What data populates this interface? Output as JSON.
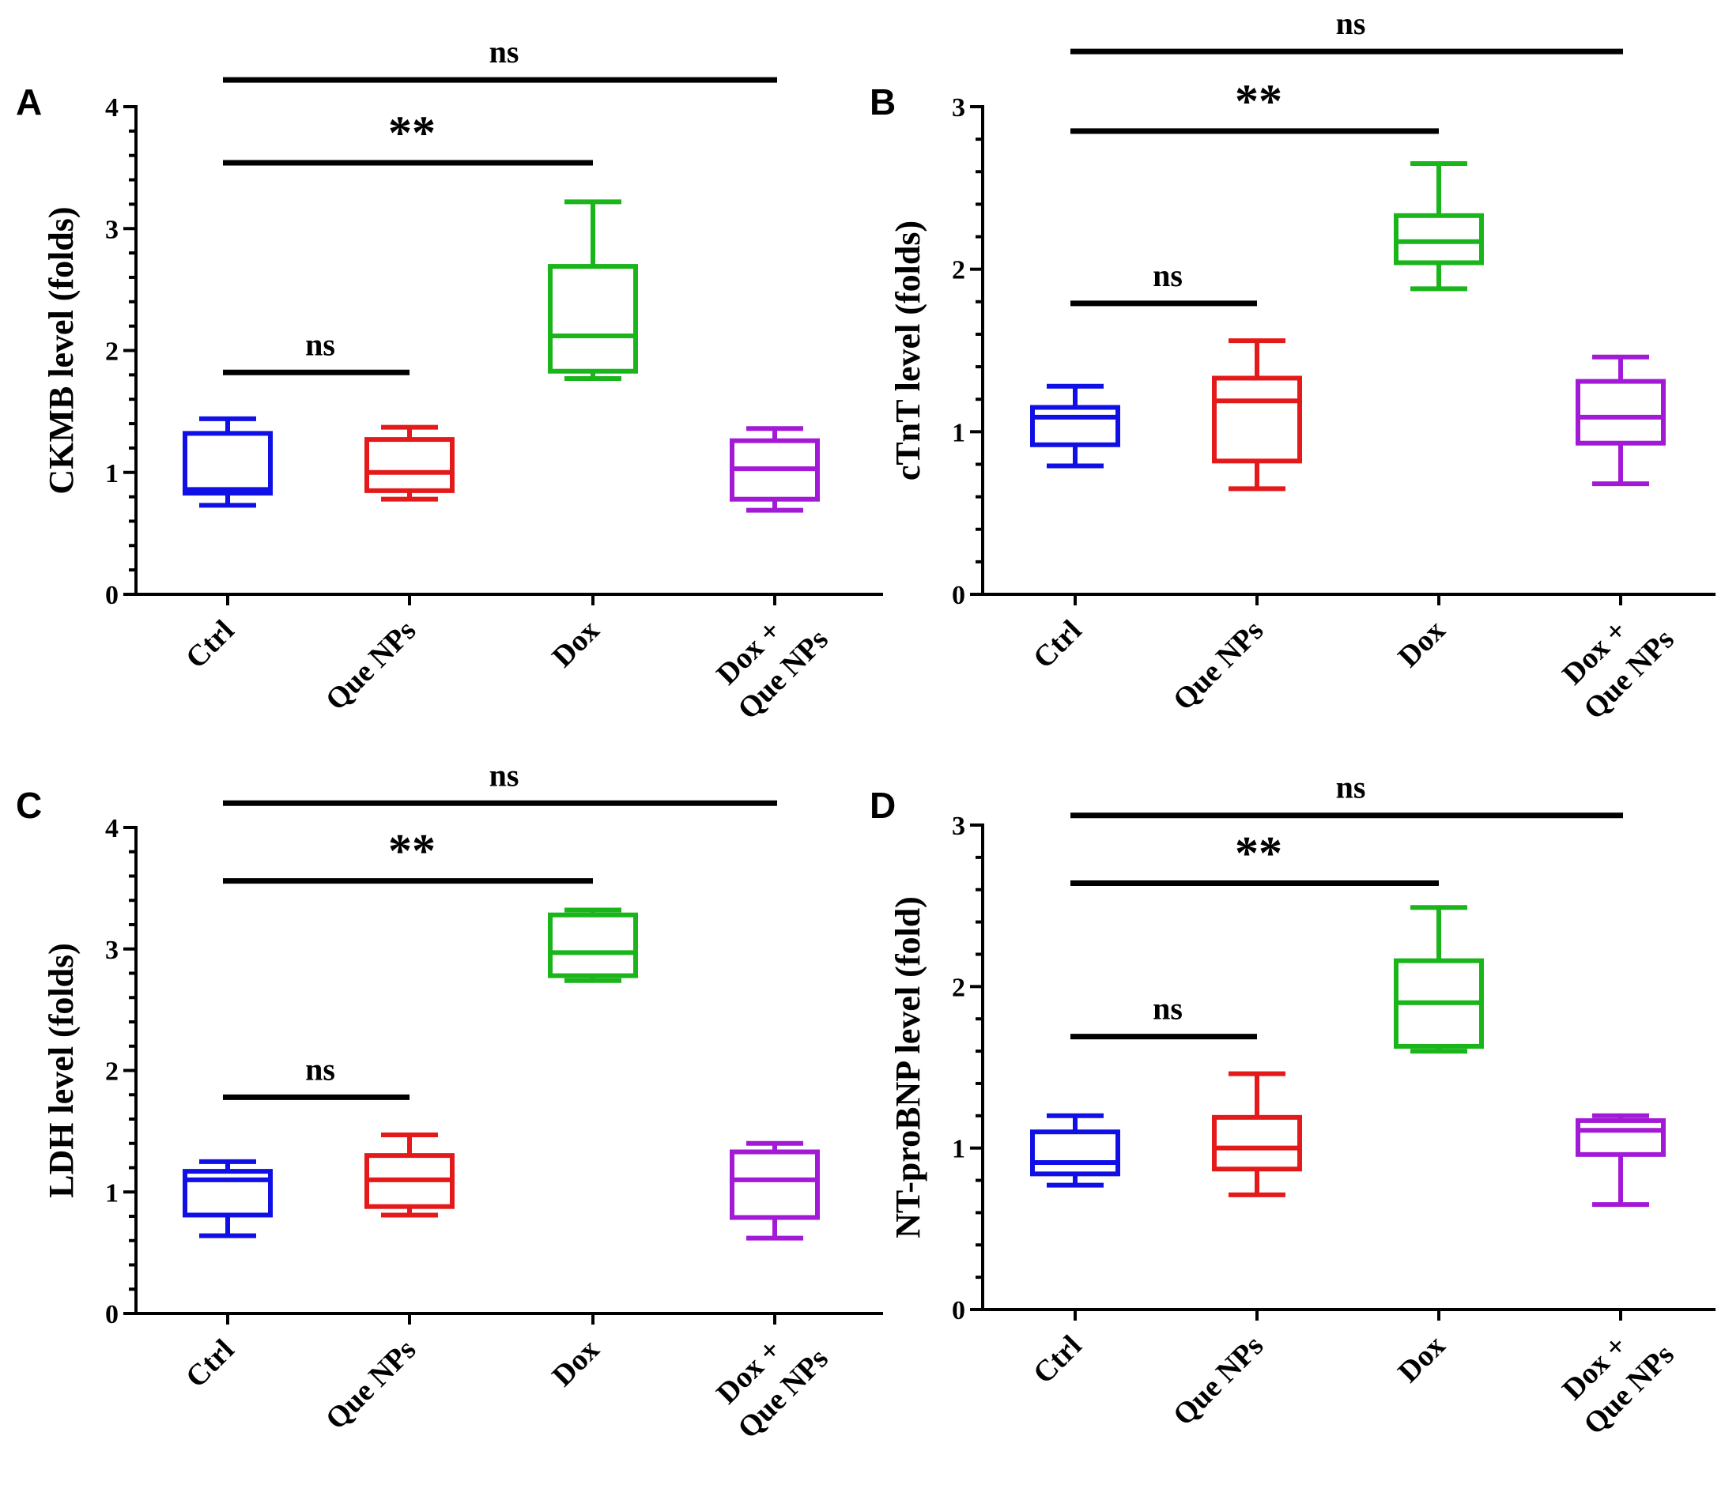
{
  "colors": {
    "ctrl": "#1010e6",
    "que_nps": "#e41a1a",
    "dox": "#1ab51a",
    "dox_que_nps": "#a31ad6",
    "axis": "#000000"
  },
  "category_labels": [
    [
      "Ctrl"
    ],
    [
      "Que NPs"
    ],
    [
      "Dox"
    ],
    [
      "Dox +",
      "Que NPs"
    ]
  ],
  "chart_data": [
    {
      "panel": "A",
      "type": "box",
      "ylabel": "CKMB level (folds)",
      "ylim": [
        0,
        4
      ],
      "yticks": [
        "0",
        "1",
        "2",
        "3",
        "4"
      ],
      "categories": [
        "Ctrl",
        "Que NPs",
        "Dox",
        "Dox + Que NPs"
      ],
      "boxes": [
        {
          "min": 0.73,
          "q1": 0.83,
          "median": 0.86,
          "q3": 1.32,
          "max": 1.44
        },
        {
          "min": 0.78,
          "q1": 0.85,
          "median": 1.0,
          "q3": 1.27,
          "max": 1.37
        },
        {
          "min": 1.77,
          "q1": 1.83,
          "median": 2.12,
          "q3": 2.69,
          "max": 3.22
        },
        {
          "min": 0.69,
          "q1": 0.78,
          "median": 1.03,
          "q3": 1.26,
          "max": 1.36
        }
      ],
      "significance": [
        {
          "from": 0,
          "to": 1,
          "level": 1.82,
          "text": "ns"
        },
        {
          "from": 0,
          "to": 2,
          "level": 3.54,
          "text": "**"
        },
        {
          "from": 0,
          "to": 3,
          "level": 4.22,
          "text": "ns"
        }
      ]
    },
    {
      "panel": "B",
      "type": "box",
      "ylabel": "cTnT level (folds)",
      "ylim": [
        0,
        3
      ],
      "yticks": [
        "0",
        "1",
        "2",
        "3"
      ],
      "categories": [
        "Ctrl",
        "Que NPs",
        "Dox",
        "Dox + Que NPs"
      ],
      "boxes": [
        {
          "min": 0.79,
          "q1": 0.92,
          "median": 1.09,
          "q3": 1.15,
          "max": 1.28
        },
        {
          "min": 0.65,
          "q1": 0.82,
          "median": 1.19,
          "q3": 1.33,
          "max": 1.56
        },
        {
          "min": 1.88,
          "q1": 2.04,
          "median": 2.17,
          "q3": 2.33,
          "max": 2.65
        },
        {
          "min": 0.68,
          "q1": 0.93,
          "median": 1.09,
          "q3": 1.31,
          "max": 1.46
        }
      ],
      "significance": [
        {
          "from": 0,
          "to": 1,
          "level": 1.79,
          "text": "ns"
        },
        {
          "from": 0,
          "to": 2,
          "level": 2.85,
          "text": "**"
        },
        {
          "from": 0,
          "to": 3,
          "level": 3.34,
          "text": "ns"
        }
      ]
    },
    {
      "panel": "C",
      "type": "box",
      "ylabel": "LDH level (folds)",
      "ylim": [
        0,
        4
      ],
      "yticks": [
        "0",
        "1",
        "2",
        "3",
        "4"
      ],
      "categories": [
        "Ctrl",
        "Que NPs",
        "Dox",
        "Dox + Que NPs"
      ],
      "boxes": [
        {
          "min": 0.64,
          "q1": 0.81,
          "median": 1.1,
          "q3": 1.17,
          "max": 1.25
        },
        {
          "min": 0.81,
          "q1": 0.88,
          "median": 1.1,
          "q3": 1.3,
          "max": 1.47
        },
        {
          "min": 2.74,
          "q1": 2.78,
          "median": 2.97,
          "q3": 3.28,
          "max": 3.32
        },
        {
          "min": 0.62,
          "q1": 0.79,
          "median": 1.1,
          "q3": 1.33,
          "max": 1.4
        }
      ],
      "significance": [
        {
          "from": 0,
          "to": 1,
          "level": 1.78,
          "text": "ns"
        },
        {
          "from": 0,
          "to": 2,
          "level": 3.56,
          "text": "**"
        },
        {
          "from": 0,
          "to": 3,
          "level": 4.2,
          "text": "ns"
        }
      ]
    },
    {
      "panel": "D",
      "type": "box",
      "ylabel": "NT-proBNP level (fold)",
      "ylim": [
        0,
        3
      ],
      "yticks": [
        "0",
        "1",
        "2",
        "3"
      ],
      "categories": [
        "Ctrl",
        "Que NPs",
        "Dox",
        "Dox + Que NPs"
      ],
      "boxes": [
        {
          "min": 0.77,
          "q1": 0.84,
          "median": 0.91,
          "q3": 1.1,
          "max": 1.2
        },
        {
          "min": 0.71,
          "q1": 0.87,
          "median": 1.0,
          "q3": 1.19,
          "max": 1.46
        },
        {
          "min": 1.6,
          "q1": 1.63,
          "median": 1.9,
          "q3": 2.16,
          "max": 2.49
        },
        {
          "min": 0.65,
          "q1": 0.96,
          "median": 1.11,
          "q3": 1.17,
          "max": 1.2
        }
      ],
      "significance": [
        {
          "from": 0,
          "to": 1,
          "level": 1.69,
          "text": "ns"
        },
        {
          "from": 0,
          "to": 2,
          "level": 2.64,
          "text": "**"
        },
        {
          "from": 0,
          "to": 3,
          "level": 3.06,
          "text": "ns"
        }
      ]
    }
  ]
}
